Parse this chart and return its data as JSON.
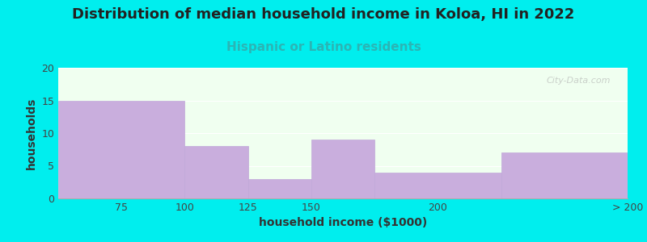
{
  "bin_edges": [
    50,
    100,
    125,
    150,
    175,
    225,
    275
  ],
  "x_tick_positions": [
    75,
    100,
    125,
    150,
    200,
    275
  ],
  "x_tick_labels": [
    "75",
    "100",
    "125",
    "150",
    "200",
    "> 200"
  ],
  "values": [
    15,
    8,
    3,
    9,
    4,
    7
  ],
  "bar_color": "#c9aedd",
  "bar_edge_color": "#c0a8d8",
  "background_color": "#00eeee",
  "plot_bg_color": "#f0fff0",
  "title": "Distribution of median household income in Koloa, HI in 2022",
  "subtitle": "Hispanic or Latino residents",
  "subtitle_color": "#2ab5b5",
  "title_color": "#222222",
  "xlabel": "household income ($1000)",
  "ylabel": "households",
  "ylim": [
    0,
    20
  ],
  "yticks": [
    0,
    5,
    10,
    15,
    20
  ],
  "title_fontsize": 13,
  "subtitle_fontsize": 11,
  "label_fontsize": 10,
  "tick_fontsize": 9,
  "watermark": "City-Data.com"
}
